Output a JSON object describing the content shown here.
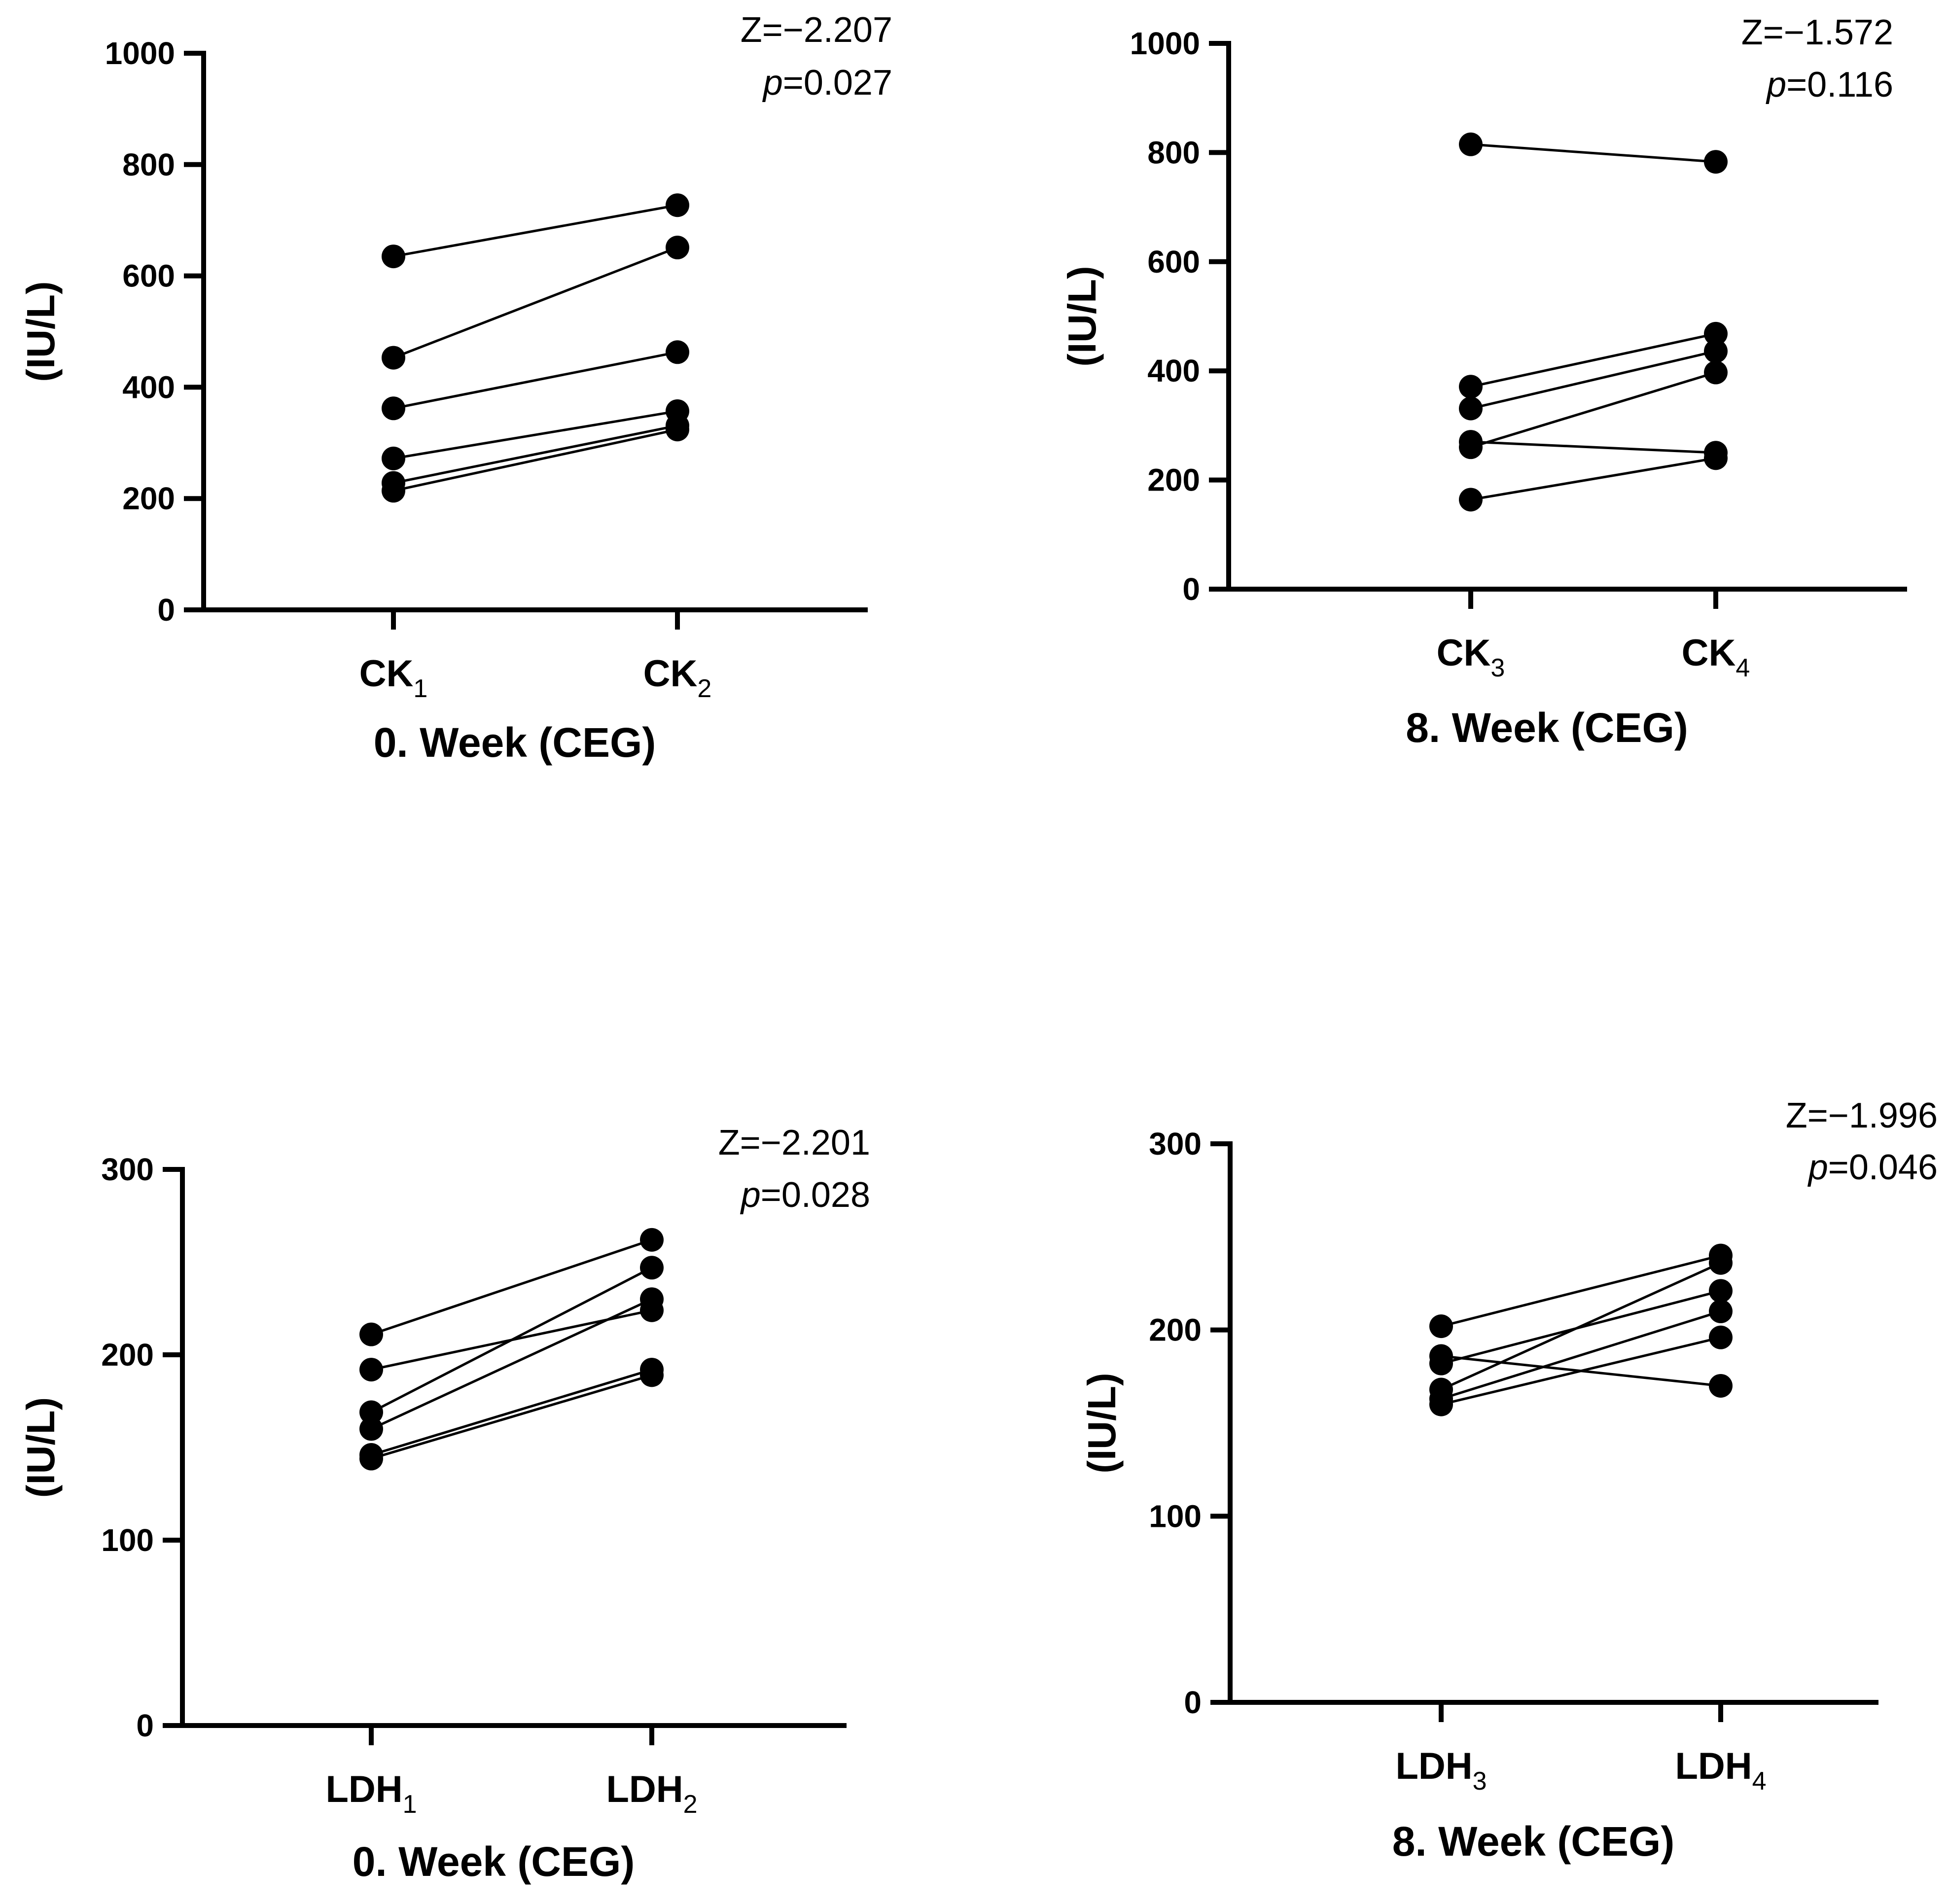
{
  "chart_data": [
    {
      "type": "line",
      "subtype": "paired-dot",
      "title": "",
      "xlabel": "0. Week (CEG)",
      "ylabel": "(IU/L)",
      "categories": [
        {
          "base": "CK",
          "sub": "1"
        },
        {
          "base": "CK",
          "sub": "2"
        }
      ],
      "ylim": [
        0,
        1000
      ],
      "yticks": [
        "0",
        "200",
        "400",
        "600",
        "800",
        "1000"
      ],
      "stats": {
        "z": "Z=−2.207",
        "p_letter": "p",
        "p_value": "=0.027"
      },
      "pairs": [
        [
          635,
          727
        ],
        [
          453,
          651
        ],
        [
          362,
          463
        ],
        [
          272,
          357
        ],
        [
          228,
          331
        ],
        [
          214,
          324
        ]
      ]
    },
    {
      "type": "line",
      "subtype": "paired-dot",
      "title": "",
      "xlabel": "8. Week (CEG)",
      "ylabel": "(IU/L)",
      "categories": [
        {
          "base": "CK",
          "sub": "3"
        },
        {
          "base": "CK",
          "sub": "4"
        }
      ],
      "ylim": [
        0,
        1000
      ],
      "yticks": [
        "0",
        "200",
        "400",
        "600",
        "800",
        "1000"
      ],
      "stats": {
        "z": "Z=−1.572",
        "p_letter": "p",
        "p_value": "=0.116"
      },
      "pairs": [
        [
          815,
          783
        ],
        [
          371,
          468
        ],
        [
          331,
          436
        ],
        [
          260,
          397
        ],
        [
          270,
          250
        ],
        [
          164,
          240
        ]
      ]
    },
    {
      "type": "line",
      "subtype": "paired-dot",
      "title": "",
      "xlabel": "0. Week (CEG)",
      "ylabel": "(IU/L)",
      "categories": [
        {
          "base": "LDH",
          "sub": "1"
        },
        {
          "base": "LDH",
          "sub": "2"
        }
      ],
      "ylim": [
        0,
        300
      ],
      "yticks": [
        "0",
        "100",
        "200",
        "300"
      ],
      "stats": {
        "z": "Z=−2.201",
        "p_letter": "p",
        "p_value": "=0.028"
      },
      "pairs": [
        [
          211,
          262
        ],
        [
          192,
          224
        ],
        [
          169,
          247
        ],
        [
          160,
          230
        ],
        [
          146,
          192
        ],
        [
          144,
          189
        ]
      ]
    },
    {
      "type": "line",
      "subtype": "paired-dot",
      "title": "",
      "xlabel": "8. Week (CEG)",
      "ylabel": "(IU/L)",
      "categories": [
        {
          "base": "LDH",
          "sub": "3"
        },
        {
          "base": "LDH",
          "sub": "4"
        }
      ],
      "ylim": [
        0,
        300
      ],
      "yticks": [
        "0",
        "100",
        "200",
        "300"
      ],
      "stats": {
        "z": "Z=−1.996",
        "p_letter": "p",
        "p_value": "=0.046"
      },
      "pairs": [
        [
          202,
          240
        ],
        [
          186,
          170
        ],
        [
          182,
          221
        ],
        [
          168,
          236
        ],
        [
          163,
          210
        ],
        [
          160,
          196
        ]
      ]
    }
  ]
}
